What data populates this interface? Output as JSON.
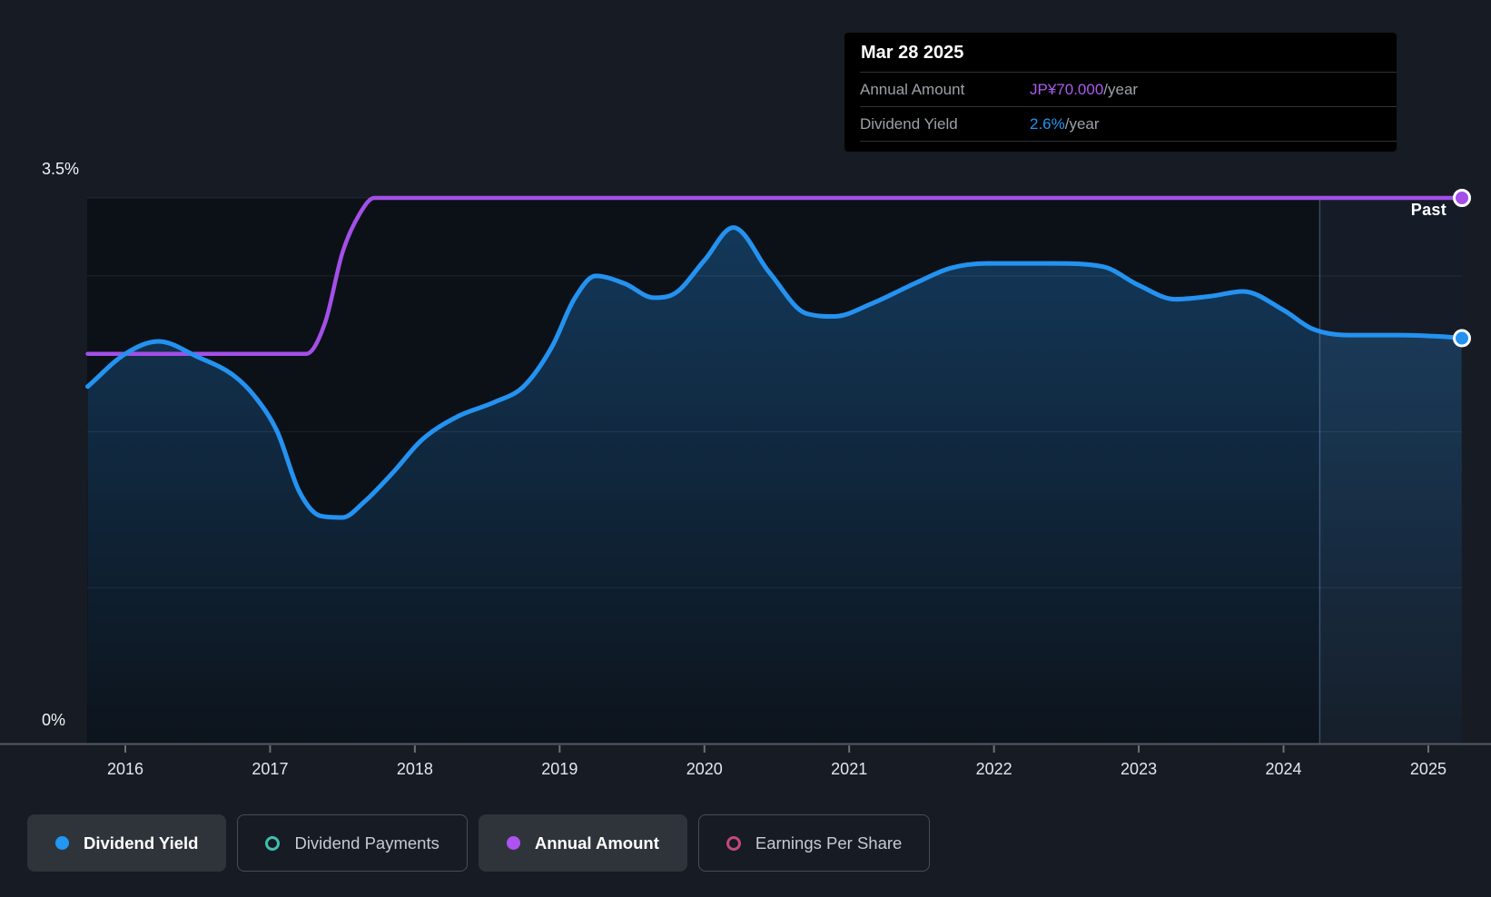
{
  "tooltip": {
    "date": "Mar 28 2025",
    "rows": [
      {
        "label": "Annual Amount",
        "value": "JP¥70.000",
        "suffix": "/year",
        "color": "#AB5BEE"
      },
      {
        "label": "Dividend Yield",
        "value": "2.6%",
        "suffix": "/year",
        "color": "#2196F3"
      }
    ]
  },
  "axis": {
    "y_top_label": "3.5%",
    "y_bottom_label": "0%"
  },
  "past_label": "Past",
  "legend": {
    "items": [
      {
        "label": "Dividend Yield",
        "color": "#2196F3",
        "style": "filled",
        "active": true
      },
      {
        "label": "Dividend Payments",
        "color": "#3FBFAE",
        "style": "outline",
        "active": false
      },
      {
        "label": "Annual Amount",
        "color": "#AE52F0",
        "style": "filled",
        "active": true
      },
      {
        "label": "Earnings Per Share",
        "color": "#C2487D",
        "style": "outline",
        "active": false
      }
    ]
  },
  "chart_data": {
    "type": "line",
    "title": "Dividend history",
    "x_ticks": [
      "2016",
      "2017",
      "2018",
      "2019",
      "2020",
      "2021",
      "2022",
      "2023",
      "2024",
      "2025"
    ],
    "x_range": [
      2015.74,
      2025.23
    ],
    "y_axis": {
      "unit": "%",
      "min": 0,
      "max": 3.5,
      "gridlines": [
        1,
        2,
        3,
        3.5
      ],
      "top_label": "3.5%",
      "bottom_label": "0%"
    },
    "past_divider_year": 2024.25,
    "colors": {
      "dividend_yield": "#2492F0",
      "annual_amount": "#A34FE8",
      "area_top": "rgba(36,146,240,0.30)",
      "area_bottom": "rgba(36,146,240,0.02)",
      "plot_bg": "#0C1118",
      "grid": "rgba(255,255,255,0.08)",
      "axis_line": "#545A62",
      "past_band": "rgba(140,180,235,0.07)",
      "past_line": "rgba(150,190,240,0.30)",
      "tick_text": "#E4E7EA"
    },
    "series": [
      {
        "name": "Dividend Yield",
        "unit": "%",
        "end_value": 2.6,
        "points": [
          [
            2015.74,
            2.29
          ],
          [
            2016.0,
            2.5
          ],
          [
            2016.23,
            2.58
          ],
          [
            2016.5,
            2.48
          ],
          [
            2016.75,
            2.36
          ],
          [
            2016.9,
            2.22
          ],
          [
            2017.05,
            2.0
          ],
          [
            2017.2,
            1.62
          ],
          [
            2017.35,
            1.46
          ],
          [
            2017.5,
            1.45
          ],
          [
            2017.65,
            1.55
          ],
          [
            2017.85,
            1.74
          ],
          [
            2018.05,
            1.95
          ],
          [
            2018.3,
            2.1
          ],
          [
            2018.55,
            2.19
          ],
          [
            2018.75,
            2.29
          ],
          [
            2018.95,
            2.55
          ],
          [
            2019.1,
            2.85
          ],
          [
            2019.25,
            3.0
          ],
          [
            2019.45,
            2.95
          ],
          [
            2019.65,
            2.86
          ],
          [
            2019.8,
            2.89
          ],
          [
            2020.0,
            3.1
          ],
          [
            2020.2,
            3.31
          ],
          [
            2020.45,
            3.02
          ],
          [
            2020.7,
            2.76
          ],
          [
            2020.9,
            2.74
          ],
          [
            2021.15,
            2.82
          ],
          [
            2021.45,
            2.95
          ],
          [
            2021.7,
            3.05
          ],
          [
            2021.95,
            3.08
          ],
          [
            2022.4,
            3.08
          ],
          [
            2022.75,
            3.06
          ],
          [
            2023.0,
            2.94
          ],
          [
            2023.25,
            2.85
          ],
          [
            2023.5,
            2.87
          ],
          [
            2023.72,
            2.9
          ],
          [
            2024.0,
            2.78
          ],
          [
            2024.2,
            2.66
          ],
          [
            2024.45,
            2.62
          ],
          [
            2024.8,
            2.62
          ],
          [
            2025.1,
            2.61
          ],
          [
            2025.23,
            2.6
          ]
        ]
      },
      {
        "name": "Annual Amount",
        "unit": "JP¥/year",
        "end_value": 70,
        "points": [
          [
            2015.74,
            50
          ],
          [
            2016.3,
            50
          ],
          [
            2016.8,
            50
          ],
          [
            2017.1,
            50
          ],
          [
            2017.25,
            50
          ],
          [
            2017.38,
            54
          ],
          [
            2017.5,
            63
          ],
          [
            2017.62,
            68
          ],
          [
            2017.72,
            70
          ],
          [
            2018.1,
            70
          ],
          [
            2019.0,
            70
          ],
          [
            2020.0,
            70
          ],
          [
            2021.0,
            70
          ],
          [
            2022.0,
            70
          ],
          [
            2023.0,
            70
          ],
          [
            2024.0,
            70
          ],
          [
            2025.23,
            70
          ]
        ]
      }
    ]
  }
}
